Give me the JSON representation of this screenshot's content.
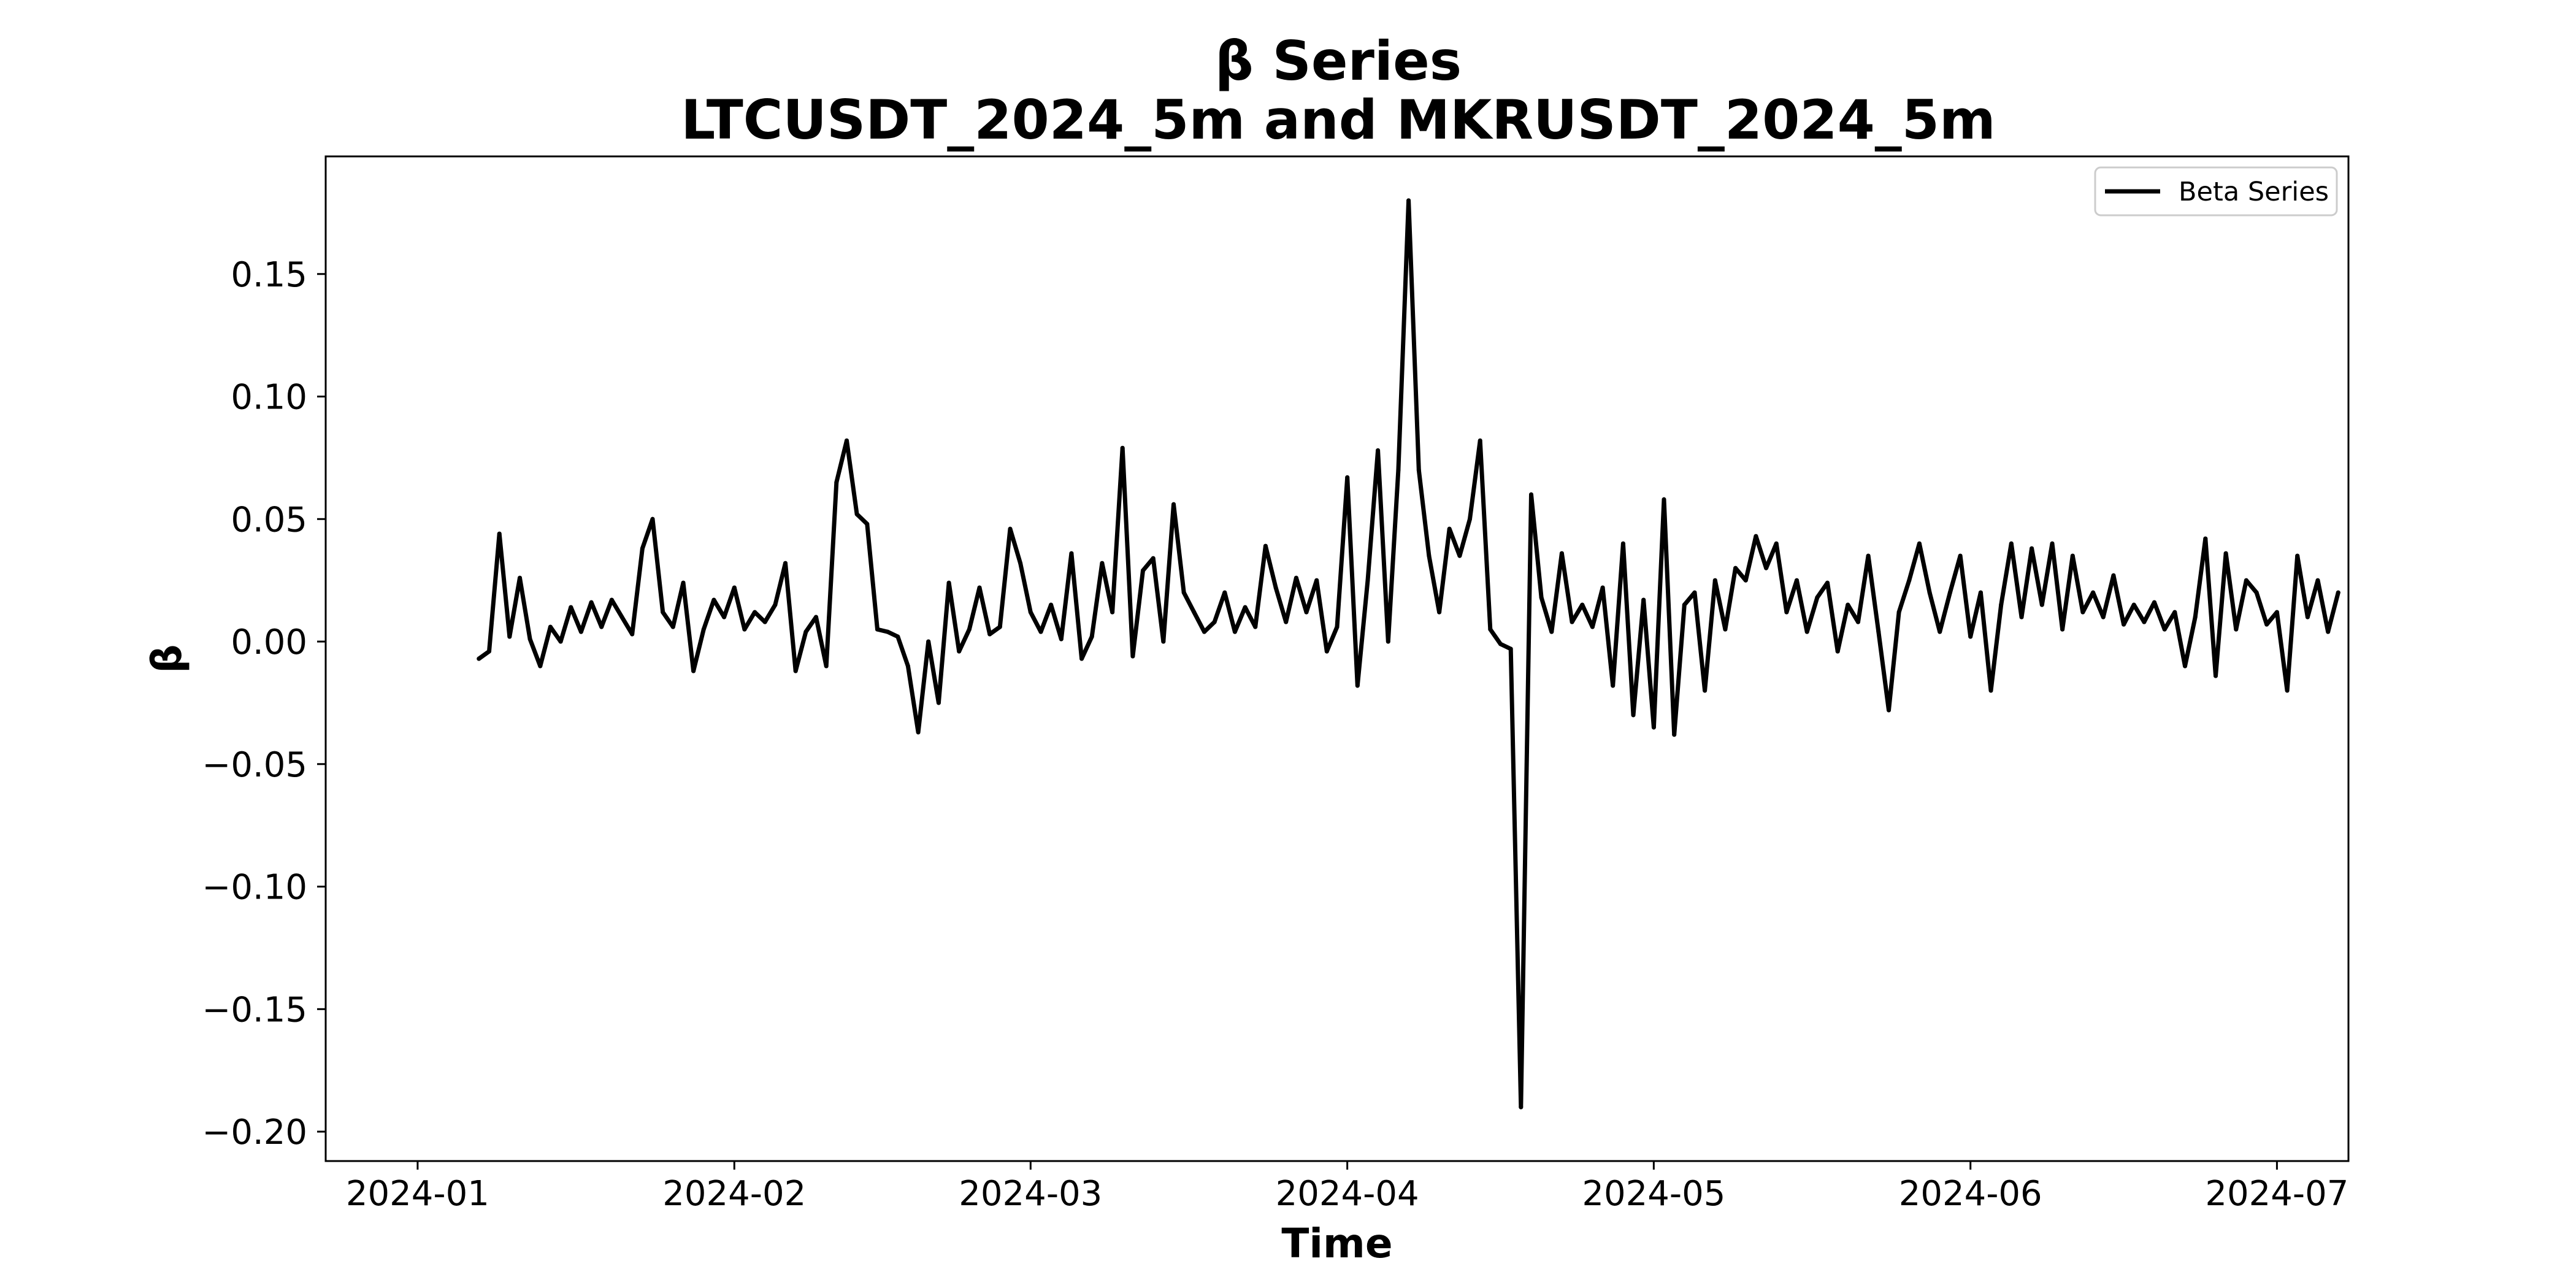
{
  "chart_data": {
    "type": "line",
    "title": "β Series",
    "subtitle": "LTCUSDT_2024_5m and MKRUSDT_2024_5m",
    "xlabel": "Time",
    "ylabel": "β",
    "xlim": [
      "2023-12-23",
      "2024-07-08"
    ],
    "ylim": [
      -0.212,
      0.198
    ],
    "x_ticks": [
      "2024-01",
      "2024-02",
      "2024-03",
      "2024-04",
      "2024-05",
      "2024-06",
      "2024-07"
    ],
    "x_tick_dates": [
      "2024-01-01",
      "2024-02-01",
      "2024-03-01",
      "2024-04-01",
      "2024-05-01",
      "2024-06-01",
      "2024-07-01"
    ],
    "y_ticks": [
      -0.2,
      -0.15,
      -0.1,
      -0.05,
      0.0,
      0.05,
      0.1,
      0.15
    ],
    "y_tick_labels": [
      "−0.20",
      "−0.15",
      "−0.10",
      "−0.05",
      "0.00",
      "0.05",
      "0.10",
      "0.15"
    ],
    "grid": false,
    "legend_position": "top-right",
    "line_color": "#000000",
    "series": [
      {
        "name": "Beta Series",
        "points": [
          [
            "2024-01-07",
            -0.007
          ],
          [
            "2024-01-08",
            -0.004
          ],
          [
            "2024-01-09",
            0.044
          ],
          [
            "2024-01-10",
            0.002
          ],
          [
            "2024-01-11",
            0.026
          ],
          [
            "2024-01-12",
            0.001
          ],
          [
            "2024-01-13",
            -0.01
          ],
          [
            "2024-01-14",
            0.006
          ],
          [
            "2024-01-15",
            0.0
          ],
          [
            "2024-01-16",
            0.014
          ],
          [
            "2024-01-17",
            0.004
          ],
          [
            "2024-01-18",
            0.016
          ],
          [
            "2024-01-19",
            0.006
          ],
          [
            "2024-01-20",
            0.017
          ],
          [
            "2024-01-21",
            0.01
          ],
          [
            "2024-01-22",
            0.003
          ],
          [
            "2024-01-23",
            0.038
          ],
          [
            "2024-01-24",
            0.05
          ],
          [
            "2024-01-25",
            0.012
          ],
          [
            "2024-01-26",
            0.006
          ],
          [
            "2024-01-27",
            0.024
          ],
          [
            "2024-01-28",
            -0.012
          ],
          [
            "2024-01-29",
            0.005
          ],
          [
            "2024-01-30",
            0.017
          ],
          [
            "2024-01-31",
            0.01
          ],
          [
            "2024-02-01",
            0.022
          ],
          [
            "2024-02-02",
            0.005
          ],
          [
            "2024-02-03",
            0.012
          ],
          [
            "2024-02-04",
            0.008
          ],
          [
            "2024-02-05",
            0.015
          ],
          [
            "2024-02-06",
            0.032
          ],
          [
            "2024-02-07",
            -0.012
          ],
          [
            "2024-02-08",
            0.004
          ],
          [
            "2024-02-09",
            0.01
          ],
          [
            "2024-02-10",
            -0.01
          ],
          [
            "2024-02-11",
            0.065
          ],
          [
            "2024-02-12",
            0.082
          ],
          [
            "2024-02-13",
            0.052
          ],
          [
            "2024-02-14",
            0.048
          ],
          [
            "2024-02-15",
            0.005
          ],
          [
            "2024-02-16",
            0.004
          ],
          [
            "2024-02-17",
            0.002
          ],
          [
            "2024-02-18",
            -0.01
          ],
          [
            "2024-02-19",
            -0.037
          ],
          [
            "2024-02-20",
            0.0
          ],
          [
            "2024-02-21",
            -0.025
          ],
          [
            "2024-02-22",
            0.024
          ],
          [
            "2024-02-23",
            -0.004
          ],
          [
            "2024-02-24",
            0.005
          ],
          [
            "2024-02-25",
            0.022
          ],
          [
            "2024-02-26",
            0.003
          ],
          [
            "2024-02-27",
            0.006
          ],
          [
            "2024-02-28",
            0.046
          ],
          [
            "2024-02-29",
            0.032
          ],
          [
            "2024-03-01",
            0.012
          ],
          [
            "2024-03-02",
            0.004
          ],
          [
            "2024-03-03",
            0.015
          ],
          [
            "2024-03-04",
            0.001
          ],
          [
            "2024-03-05",
            0.036
          ],
          [
            "2024-03-06",
            -0.007
          ],
          [
            "2024-03-07",
            0.002
          ],
          [
            "2024-03-08",
            0.032
          ],
          [
            "2024-03-09",
            0.012
          ],
          [
            "2024-03-10",
            0.079
          ],
          [
            "2024-03-11",
            -0.006
          ],
          [
            "2024-03-12",
            0.029
          ],
          [
            "2024-03-13",
            0.034
          ],
          [
            "2024-03-14",
            0.0
          ],
          [
            "2024-03-15",
            0.056
          ],
          [
            "2024-03-16",
            0.02
          ],
          [
            "2024-03-17",
            0.012
          ],
          [
            "2024-03-18",
            0.004
          ],
          [
            "2024-03-19",
            0.008
          ],
          [
            "2024-03-20",
            0.02
          ],
          [
            "2024-03-21",
            0.004
          ],
          [
            "2024-03-22",
            0.014
          ],
          [
            "2024-03-23",
            0.006
          ],
          [
            "2024-03-24",
            0.039
          ],
          [
            "2024-03-25",
            0.022
          ],
          [
            "2024-03-26",
            0.008
          ],
          [
            "2024-03-27",
            0.026
          ],
          [
            "2024-03-28",
            0.012
          ],
          [
            "2024-03-29",
            0.025
          ],
          [
            "2024-03-30",
            -0.004
          ],
          [
            "2024-03-31",
            0.006
          ],
          [
            "2024-04-01",
            0.067
          ],
          [
            "2024-04-02",
            -0.018
          ],
          [
            "2024-04-03",
            0.025
          ],
          [
            "2024-04-04",
            0.078
          ],
          [
            "2024-04-05",
            0.0
          ],
          [
            "2024-04-06",
            0.07
          ],
          [
            "2024-04-07",
            0.18
          ],
          [
            "2024-04-08",
            0.07
          ],
          [
            "2024-04-09",
            0.035
          ],
          [
            "2024-04-10",
            0.012
          ],
          [
            "2024-04-11",
            0.046
          ],
          [
            "2024-04-12",
            0.035
          ],
          [
            "2024-04-13",
            0.05
          ],
          [
            "2024-04-14",
            0.082
          ],
          [
            "2024-04-15",
            0.005
          ],
          [
            "2024-04-16",
            -0.001
          ],
          [
            "2024-04-17",
            -0.003
          ],
          [
            "2024-04-18",
            -0.19
          ],
          [
            "2024-04-19",
            0.06
          ],
          [
            "2024-04-20",
            0.018
          ],
          [
            "2024-04-21",
            0.004
          ],
          [
            "2024-04-22",
            0.036
          ],
          [
            "2024-04-23",
            0.008
          ],
          [
            "2024-04-24",
            0.015
          ],
          [
            "2024-04-25",
            0.006
          ],
          [
            "2024-04-26",
            0.022
          ],
          [
            "2024-04-27",
            -0.018
          ],
          [
            "2024-04-28",
            0.04
          ],
          [
            "2024-04-29",
            -0.03
          ],
          [
            "2024-04-30",
            0.017
          ],
          [
            "2024-05-01",
            -0.035
          ],
          [
            "2024-05-02",
            0.058
          ],
          [
            "2024-05-03",
            -0.038
          ],
          [
            "2024-05-04",
            0.015
          ],
          [
            "2024-05-05",
            0.02
          ],
          [
            "2024-05-06",
            -0.02
          ],
          [
            "2024-05-07",
            0.025
          ],
          [
            "2024-05-08",
            0.005
          ],
          [
            "2024-05-09",
            0.03
          ],
          [
            "2024-05-10",
            0.025
          ],
          [
            "2024-05-11",
            0.043
          ],
          [
            "2024-05-12",
            0.03
          ],
          [
            "2024-05-13",
            0.04
          ],
          [
            "2024-05-14",
            0.012
          ],
          [
            "2024-05-15",
            0.025
          ],
          [
            "2024-05-16",
            0.004
          ],
          [
            "2024-05-17",
            0.018
          ],
          [
            "2024-05-18",
            0.024
          ],
          [
            "2024-05-19",
            -0.004
          ],
          [
            "2024-05-20",
            0.015
          ],
          [
            "2024-05-21",
            0.008
          ],
          [
            "2024-05-22",
            0.035
          ],
          [
            "2024-05-23",
            0.004
          ],
          [
            "2024-05-24",
            -0.028
          ],
          [
            "2024-05-25",
            0.012
          ],
          [
            "2024-05-26",
            0.025
          ],
          [
            "2024-05-27",
            0.04
          ],
          [
            "2024-05-28",
            0.02
          ],
          [
            "2024-05-29",
            0.004
          ],
          [
            "2024-05-30",
            0.02
          ],
          [
            "2024-05-31",
            0.035
          ],
          [
            "2024-06-01",
            0.002
          ],
          [
            "2024-06-02",
            0.02
          ],
          [
            "2024-06-03",
            -0.02
          ],
          [
            "2024-06-04",
            0.015
          ],
          [
            "2024-06-05",
            0.04
          ],
          [
            "2024-06-06",
            0.01
          ],
          [
            "2024-06-07",
            0.038
          ],
          [
            "2024-06-08",
            0.015
          ],
          [
            "2024-06-09",
            0.04
          ],
          [
            "2024-06-10",
            0.005
          ],
          [
            "2024-06-11",
            0.035
          ],
          [
            "2024-06-12",
            0.012
          ],
          [
            "2024-06-13",
            0.02
          ],
          [
            "2024-06-14",
            0.01
          ],
          [
            "2024-06-15",
            0.027
          ],
          [
            "2024-06-16",
            0.007
          ],
          [
            "2024-06-17",
            0.015
          ],
          [
            "2024-06-18",
            0.008
          ],
          [
            "2024-06-19",
            0.016
          ],
          [
            "2024-06-20",
            0.005
          ],
          [
            "2024-06-21",
            0.012
          ],
          [
            "2024-06-22",
            -0.01
          ],
          [
            "2024-06-23",
            0.01
          ],
          [
            "2024-06-24",
            0.042
          ],
          [
            "2024-06-25",
            -0.014
          ],
          [
            "2024-06-26",
            0.036
          ],
          [
            "2024-06-27",
            0.005
          ],
          [
            "2024-06-28",
            0.025
          ],
          [
            "2024-06-29",
            0.02
          ],
          [
            "2024-06-30",
            0.007
          ],
          [
            "2024-07-01",
            0.012
          ],
          [
            "2024-07-02",
            -0.02
          ],
          [
            "2024-07-03",
            0.035
          ],
          [
            "2024-07-04",
            0.01
          ],
          [
            "2024-07-05",
            0.025
          ],
          [
            "2024-07-06",
            0.004
          ],
          [
            "2024-07-07",
            0.02
          ]
        ]
      }
    ]
  }
}
